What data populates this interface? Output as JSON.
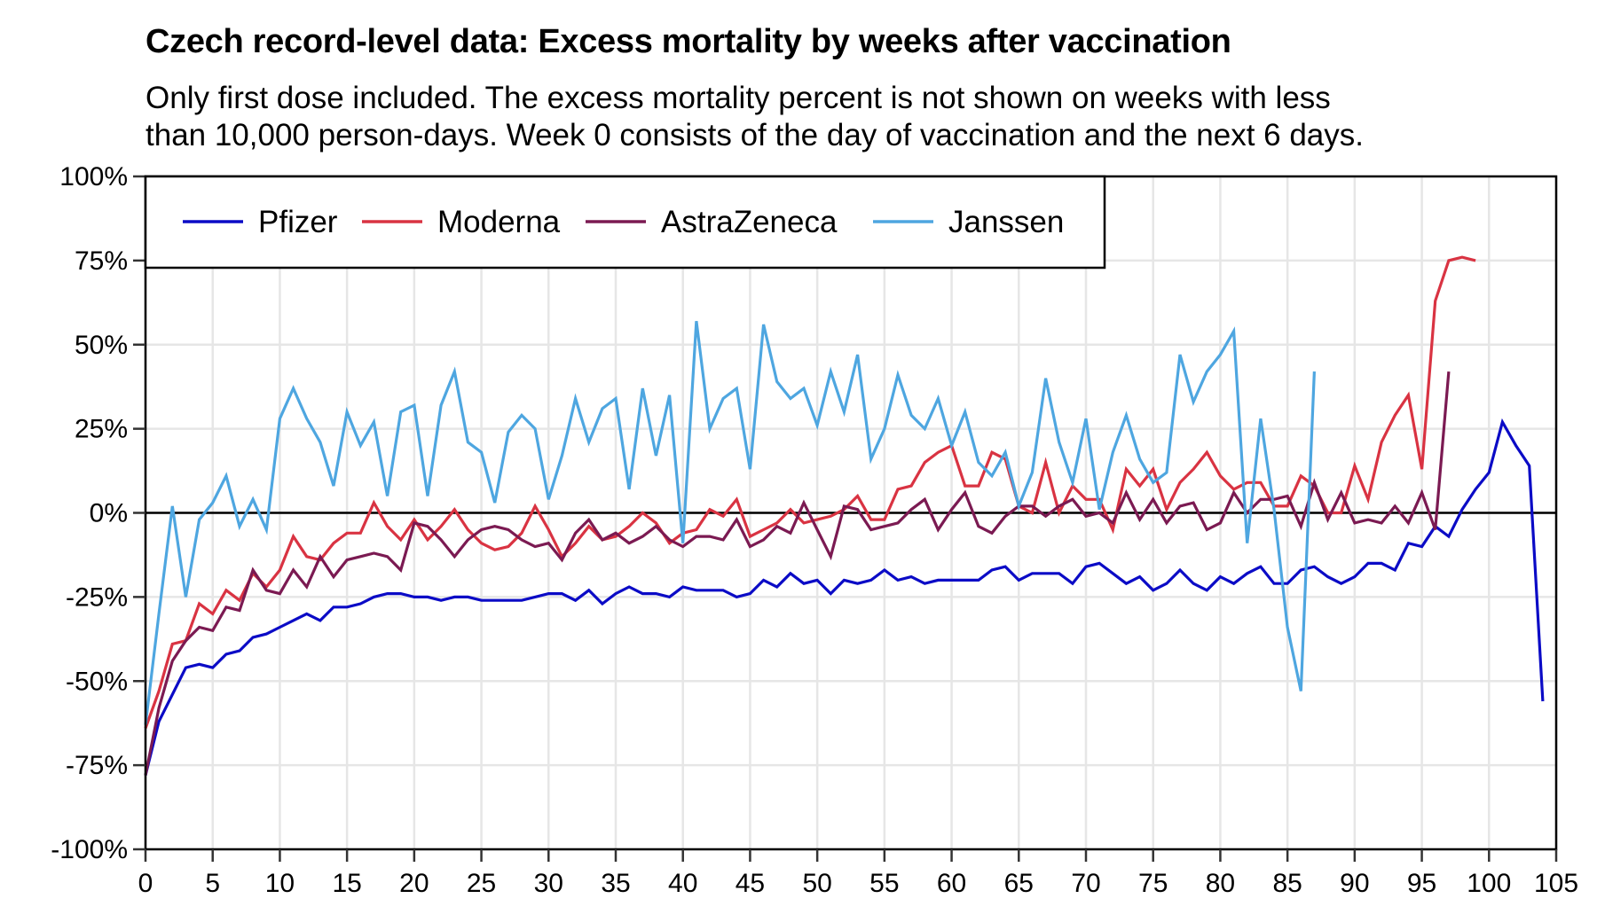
{
  "title": "Czech record-level data: Excess mortality by weeks after vaccination",
  "subtitle_lines": [
    "Only first dose included. The excess mortality percent is not shown on weeks with less",
    "than 10,000 person-days. Week 0 consists of the day of vaccination and the next 6 days."
  ],
  "chart_data": {
    "type": "line",
    "title": "Czech record-level data: Excess mortality by weeks after vaccination",
    "subtitle": "Only first dose included. The excess mortality percent is not shown on weeks with less than 10,000 person-days. Week 0 consists of the day of vaccination and the next 6 days.",
    "xlabel": "",
    "ylabel": "",
    "xlim": [
      0,
      105
    ],
    "ylim": [
      -100,
      100
    ],
    "x_ticks": [
      0,
      5,
      10,
      15,
      20,
      25,
      30,
      35,
      40,
      45,
      50,
      55,
      60,
      65,
      70,
      75,
      80,
      85,
      90,
      95,
      100,
      105
    ],
    "y_ticks": [
      100,
      75,
      50,
      25,
      0,
      -25,
      -50,
      -75,
      -100
    ],
    "y_tick_labels": [
      "100%",
      "75%",
      "50%",
      "25%",
      "0%",
      "-25%",
      "-50%",
      "-75%",
      "-100%"
    ],
    "grid": true,
    "zero_line": true,
    "legend_position": "top-left",
    "series": [
      {
        "name": "Pfizer",
        "color": "#0b0bc6",
        "start_week": 0,
        "values": [
          -78,
          -62,
          -54,
          -46,
          -45,
          -46,
          -42,
          -41,
          -37,
          -36,
          -34,
          -32,
          -30,
          -32,
          -28,
          -28,
          -27,
          -25,
          -24,
          -24,
          -25,
          -25,
          -26,
          -25,
          -25,
          -26,
          -26,
          -26,
          -26,
          -25,
          -24,
          -24,
          -26,
          -23,
          -27,
          -24,
          -22,
          -24,
          -24,
          -25,
          -22,
          -23,
          -23,
          -23,
          -25,
          -24,
          -20,
          -22,
          -18,
          -21,
          -20,
          -24,
          -20,
          -21,
          -20,
          -17,
          -20,
          -19,
          -21,
          -20,
          -20,
          -20,
          -20,
          -17,
          -16,
          -20,
          -18,
          -18,
          -18,
          -21,
          -16,
          -15,
          -18,
          -21,
          -19,
          -23,
          -21,
          -17,
          -21,
          -23,
          -19,
          -21,
          -18,
          -16,
          -21,
          -21,
          -17,
          -16,
          -19,
          -21,
          -19,
          -15,
          -15,
          -17,
          -9,
          -10,
          -4,
          -7,
          1,
          7,
          12,
          27,
          20,
          14,
          -56
        ]
      },
      {
        "name": "Moderna",
        "color": "#d93342",
        "start_week": 0,
        "values": [
          -64,
          -53,
          -39,
          -38,
          -27,
          -30,
          -23,
          -26,
          -18,
          -22,
          -17,
          -7,
          -13,
          -14,
          -9,
          -6,
          -6,
          3,
          -4,
          -8,
          -2,
          -8,
          -4,
          1,
          -5,
          -9,
          -11,
          -10,
          -6,
          2,
          -5,
          -13,
          -9,
          -4,
          -8,
          -7,
          -4,
          0,
          -3,
          -9,
          -6,
          -5,
          1,
          -1,
          4,
          -7,
          -5,
          -3,
          1,
          -3,
          -2,
          -1,
          1,
          5,
          -2,
          -2,
          7,
          8,
          15,
          18,
          20,
          8,
          8,
          18,
          16,
          2,
          0,
          15,
          0,
          8,
          4,
          4,
          -5,
          13,
          8,
          13,
          1,
          9,
          13,
          18,
          11,
          7,
          9,
          9,
          2,
          2,
          11,
          8,
          0,
          0,
          14,
          4,
          21,
          29,
          35,
          13,
          63,
          75,
          76,
          75
        ]
      },
      {
        "name": "AstraZeneca",
        "color": "#7b1a52",
        "start_week": 0,
        "values": [
          -78,
          -58,
          -44,
          -38,
          -34,
          -35,
          -28,
          -29,
          -17,
          -23,
          -24,
          -17,
          -22,
          -13,
          -19,
          -14,
          -13,
          -12,
          -13,
          -17,
          -3,
          -4,
          -8,
          -13,
          -8,
          -5,
          -4,
          -5,
          -8,
          -10,
          -9,
          -14,
          -6,
          -2,
          -8,
          -6,
          -9,
          -7,
          -4,
          -8,
          -10,
          -7,
          -7,
          -8,
          -2,
          -10,
          -8,
          -4,
          -6,
          3,
          -5,
          -13,
          2,
          1,
          -5,
          -4,
          -3,
          1,
          4,
          -5,
          1,
          6,
          -4,
          -6,
          -1,
          2,
          2,
          -1,
          2,
          4,
          -1,
          0,
          -3,
          6,
          -2,
          4,
          -3,
          2,
          3,
          -5,
          -3,
          6,
          0,
          4,
          4,
          5,
          -4,
          9,
          -2,
          6,
          -3,
          -2,
          -3,
          2,
          -3,
          6,
          -5,
          42
        ]
      },
      {
        "name": "Janssen",
        "color": "#4ea6e0",
        "start_week": 0,
        "values": [
          -63,
          -30,
          2,
          -25,
          -2,
          3,
          11,
          -4,
          4,
          -5,
          28,
          37,
          28,
          21,
          8,
          30,
          20,
          27,
          5,
          30,
          32,
          5,
          32,
          42,
          21,
          18,
          3,
          24,
          29,
          25,
          4,
          17,
          34,
          21,
          31,
          34,
          7,
          37,
          17,
          35,
          -9,
          57,
          25,
          34,
          37,
          13,
          56,
          39,
          34,
          37,
          26,
          42,
          30,
          47,
          16,
          25,
          41,
          29,
          25,
          34,
          20,
          30,
          15,
          11,
          18,
          2,
          12,
          40,
          21,
          9,
          28,
          1,
          18,
          29,
          16,
          9,
          12,
          47,
          33,
          42,
          47,
          54,
          -9,
          28,
          1,
          -34,
          -53,
          42
        ]
      }
    ]
  }
}
